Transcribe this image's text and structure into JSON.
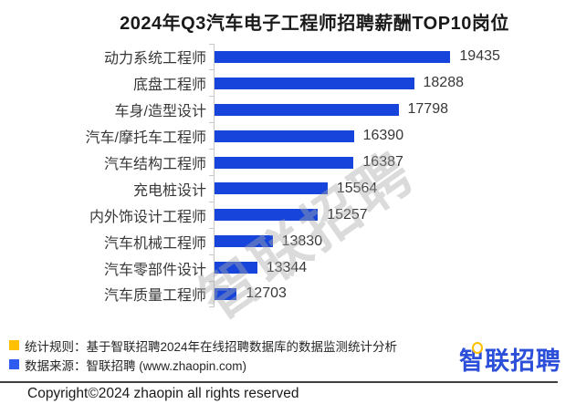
{
  "title": "2024年Q3汽车电子工程师招聘薪酬TOP10岗位",
  "watermark": "智联招聘",
  "chart_data": {
    "type": "bar",
    "orientation": "horizontal",
    "title": "2024年Q3汽车电子工程师招聘薪酬TOP10岗位",
    "categories": [
      "动力系统工程师",
      "底盘工程师",
      "车身/造型设计",
      "汽车/摩托车工程师",
      "汽车结构工程师",
      "充电桩设计",
      "内外饰设计工程师",
      "汽车机械工程师",
      "汽车零部件设计",
      "汽车质量工程师"
    ],
    "values": [
      19435,
      18288,
      17798,
      16390,
      16387,
      15564,
      15257,
      13830,
      13344,
      12703
    ],
    "xlim": [
      12000,
      20000
    ],
    "bar_color": "#1745DB",
    "axis_color": "#c9c9c9",
    "grid": false,
    "legend_position": "none",
    "value_labels": true
  },
  "footer": {
    "legend": [
      {
        "color": "#FFC000",
        "text": "统计规则：基于智联招聘2024年在线招聘数据库的数据监测统计分析"
      },
      {
        "color": "#2E5BF0",
        "text": "数据来源：智联招聘 (www.zhaopin.com)"
      }
    ],
    "logo": {
      "text": "智联招聘",
      "color": "#2B4FD8",
      "accent": "#FFC000"
    },
    "copyright": "Copyright©2024 zhaopin all rights reserved"
  }
}
